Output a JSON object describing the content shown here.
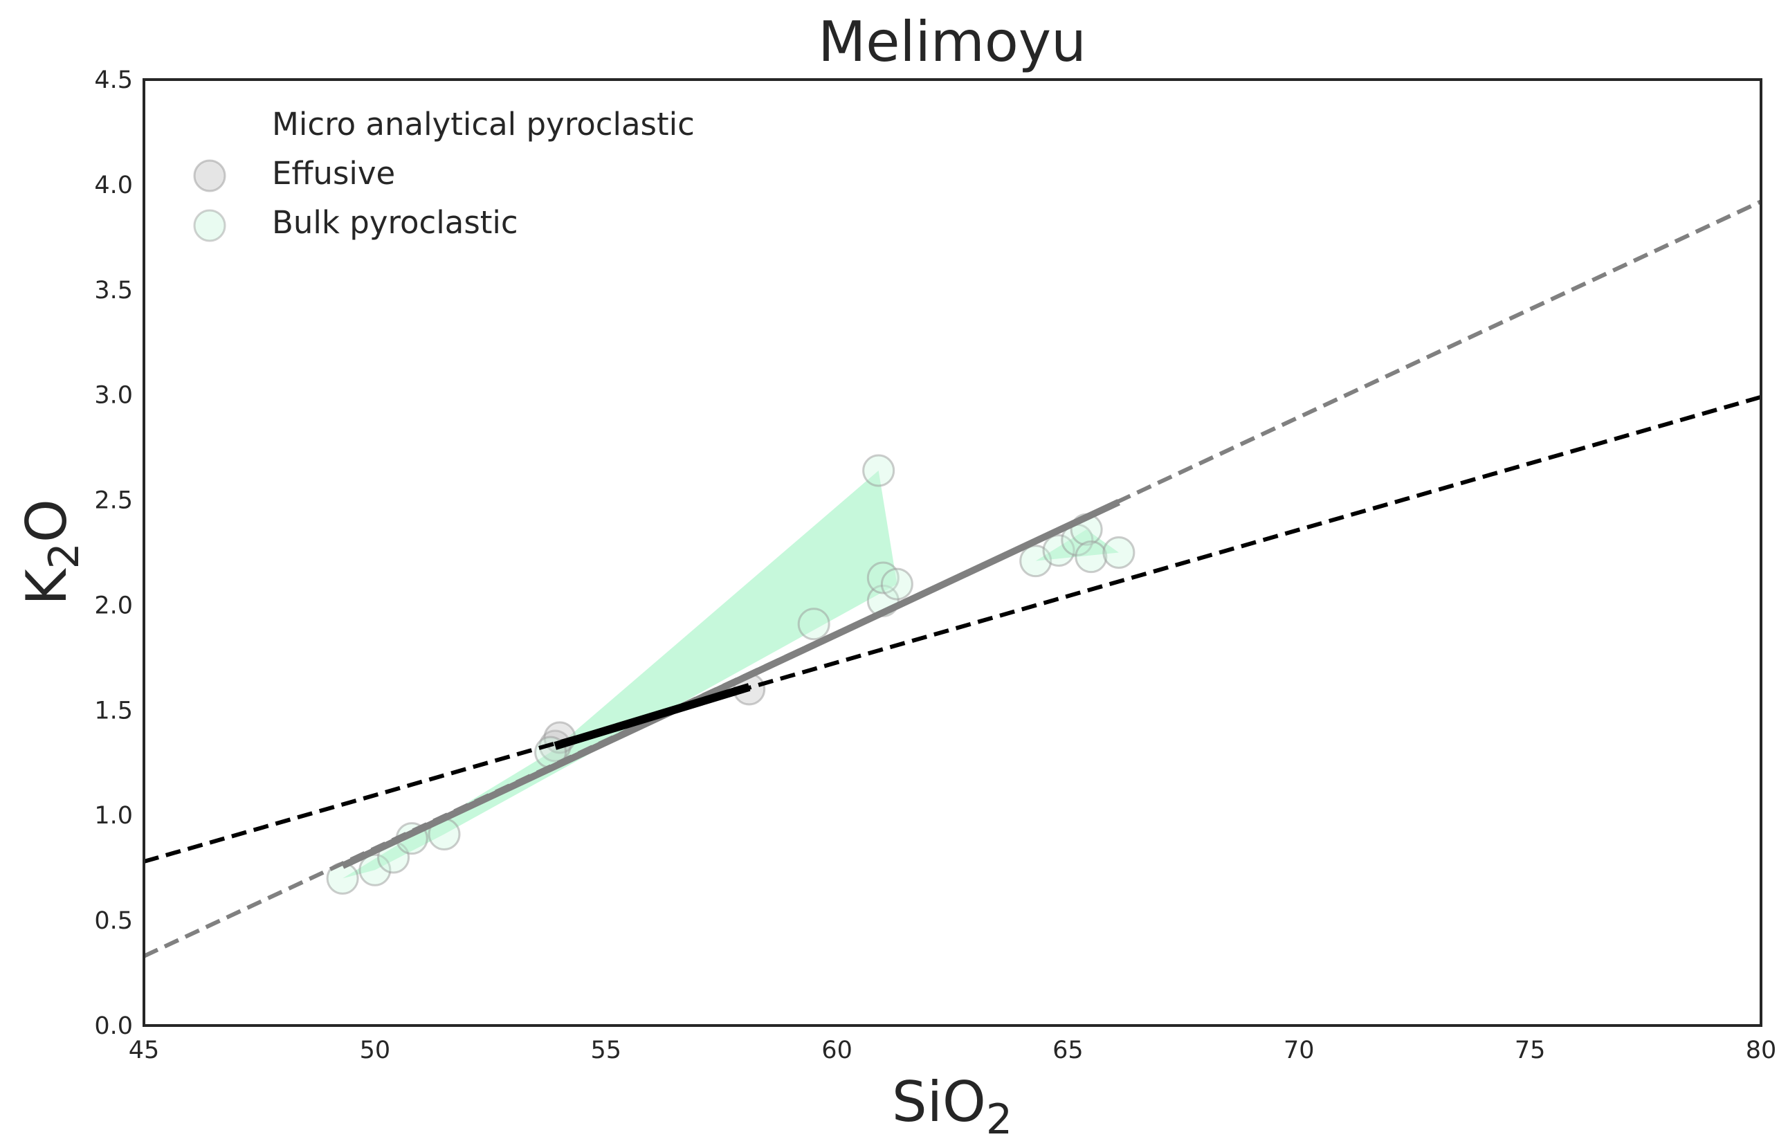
{
  "chart_data": {
    "type": "scatter",
    "title": "Melimoyu",
    "xlabel_main": "SiO",
    "xlabel_sub": "2",
    "ylabel_main": "K",
    "ylabel_sub": "2",
    "ylabel_tail": "O",
    "xlim": [
      45,
      80
    ],
    "ylim": [
      0,
      4.5
    ],
    "xticks": [
      45,
      50,
      55,
      60,
      65,
      70,
      75,
      80
    ],
    "yticks": [
      0.0,
      0.5,
      1.0,
      1.5,
      2.0,
      2.5,
      3.0,
      3.5,
      4.0,
      4.5
    ],
    "grid": false,
    "legend_position": "top-left",
    "legend": [
      {
        "label": "Micro analytical pyroclastic",
        "marker": "none"
      },
      {
        "label": "Effusive",
        "marker": "circle",
        "color": "#bdbdbd"
      },
      {
        "label": "Bulk pyroclastic",
        "marker": "circle",
        "color": "#c8f5dc"
      }
    ],
    "series": [
      {
        "name": "Effusive",
        "color": "#bdbdbd",
        "points": [
          {
            "x": 53.9,
            "y": 1.33
          },
          {
            "x": 54.0,
            "y": 1.37
          },
          {
            "x": 58.1,
            "y": 1.6
          }
        ],
        "fit": {
          "x": [
            53.9,
            58.1
          ],
          "y": [
            1.33,
            1.61
          ]
        },
        "fit_extended": {
          "x": [
            45,
            80
          ],
          "y": [
            0.78,
            2.99
          ]
        }
      },
      {
        "name": "Bulk pyroclastic",
        "color": "#c8f5dc",
        "points": [
          {
            "x": 49.3,
            "y": 0.7
          },
          {
            "x": 50.0,
            "y": 0.74
          },
          {
            "x": 50.4,
            "y": 0.8
          },
          {
            "x": 50.8,
            "y": 0.89
          },
          {
            "x": 51.5,
            "y": 0.91
          },
          {
            "x": 53.8,
            "y": 1.3
          },
          {
            "x": 59.5,
            "y": 1.91
          },
          {
            "x": 60.9,
            "y": 2.64
          },
          {
            "x": 61.0,
            "y": 2.02
          },
          {
            "x": 61.0,
            "y": 2.13
          },
          {
            "x": 61.3,
            "y": 2.1
          },
          {
            "x": 64.3,
            "y": 2.21
          },
          {
            "x": 64.8,
            "y": 2.26
          },
          {
            "x": 65.2,
            "y": 2.31
          },
          {
            "x": 65.4,
            "y": 2.36
          },
          {
            "x": 65.5,
            "y": 2.23
          },
          {
            "x": 66.1,
            "y": 2.25
          }
        ],
        "hulls": [
          [
            [
              49.3,
              0.7
            ],
            [
              53.8,
              1.3
            ],
            [
              60.9,
              2.64
            ],
            [
              61.3,
              2.1
            ],
            [
              51.5,
              0.91
            ],
            [
              50.0,
              0.74
            ]
          ],
          [
            [
              64.3,
              2.21
            ],
            [
              65.4,
              2.36
            ],
            [
              66.1,
              2.25
            ]
          ]
        ],
        "fit": {
          "x": [
            49.3,
            66.1
          ],
          "y": [
            0.76,
            2.49
          ]
        },
        "fit_extended": {
          "x": [
            45,
            80
          ],
          "y": [
            0.33,
            3.92
          ]
        }
      }
    ]
  }
}
